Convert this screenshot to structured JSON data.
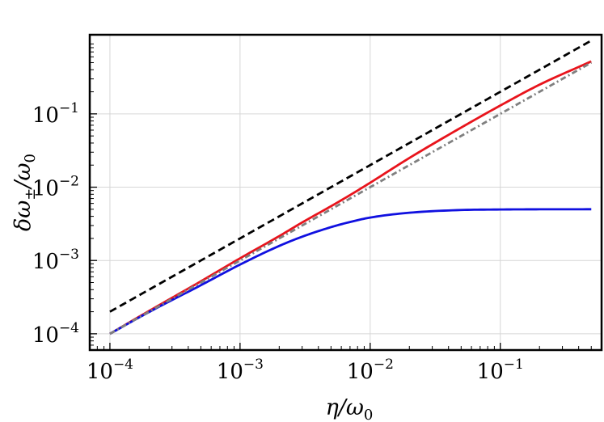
{
  "chart_data": {
    "type": "line",
    "title": "",
    "xlabel": {
      "main": "η/ω",
      "sub": "0"
    },
    "ylabel": {
      "main": "δω",
      "pm": "±",
      "rest": "/ω",
      "sub": "0"
    },
    "xscale": "log",
    "yscale": "log",
    "xlim": [
      7e-05,
      0.6
    ],
    "ylim": [
      6e-05,
      1.2
    ],
    "grid": true,
    "legend": "none",
    "x_ticks": [
      {
        "value": 0.0001,
        "base": "10",
        "exp": "−4"
      },
      {
        "value": 0.001,
        "base": "10",
        "exp": "−3"
      },
      {
        "value": 0.01,
        "base": "10",
        "exp": "−2"
      },
      {
        "value": 0.1,
        "base": "10",
        "exp": "−1"
      }
    ],
    "y_ticks": [
      {
        "value": 0.0001,
        "base": "10",
        "exp": "−4"
      },
      {
        "value": 0.001,
        "base": "10",
        "exp": "−3"
      },
      {
        "value": 0.01,
        "base": "10",
        "exp": "−2"
      },
      {
        "value": 0.1,
        "base": "10",
        "exp": "−1"
      }
    ],
    "x": [
      0.0001,
      0.0002,
      0.0005,
      0.001,
      0.002,
      0.003,
      0.005,
      0.007,
      0.01,
      0.02,
      0.05,
      0.1,
      0.2,
      0.5
    ],
    "series": [
      {
        "color": "#e8141c",
        "dash": "solid",
        "values": [
          0.0001,
          0.000205,
          0.00052,
          0.00107,
          0.00215,
          0.0033,
          0.0055,
          0.0078,
          0.0115,
          0.025,
          0.065,
          0.13,
          0.25,
          0.52
        ]
      },
      {
        "color": "#1010e0",
        "dash": "solid",
        "values": [
          0.0001,
          0.000198,
          0.00046,
          0.00088,
          0.00158,
          0.00211,
          0.00285,
          0.00335,
          0.00385,
          0.00448,
          0.00488,
          0.00496,
          0.00499,
          0.005
        ]
      },
      {
        "color": "#000000",
        "dash": "dashed",
        "values": [
          0.0002,
          0.0004,
          0.001,
          0.002,
          0.004,
          0.006,
          0.01,
          0.014,
          0.02,
          0.04,
          0.1,
          0.2,
          0.4,
          1.0
        ]
      },
      {
        "color": "#808080",
        "dash": "dashdot",
        "values": [
          0.0001,
          0.0002,
          0.0005,
          0.001,
          0.002,
          0.003,
          0.005,
          0.007,
          0.01,
          0.02,
          0.05,
          0.1,
          0.2,
          0.5
        ]
      }
    ]
  }
}
